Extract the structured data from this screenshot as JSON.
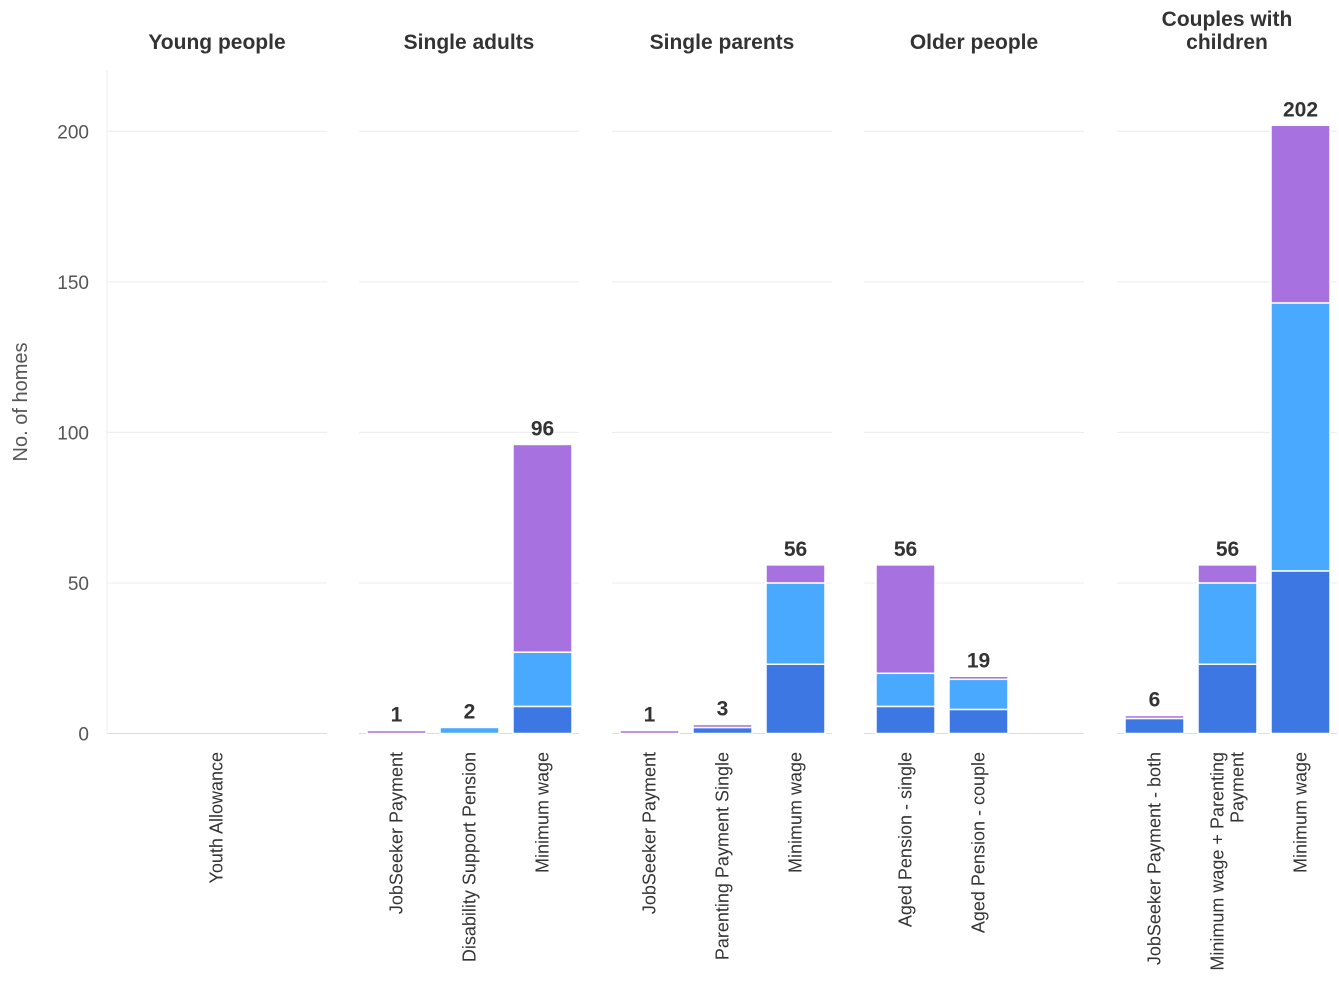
{
  "chart_data": {
    "type": "bar",
    "stacked": true,
    "ylabel": "No. of homes",
    "ylim": [
      0,
      215
    ],
    "yticks": [
      0,
      50,
      100,
      150,
      200
    ],
    "grid": true,
    "segment_colors": [
      "#3d77e3",
      "#48a9fe",
      "#a772e0"
    ],
    "panels": [
      {
        "title": [
          "Young people"
        ],
        "bars": [
          {
            "category": [
              "Youth Allowance"
            ],
            "total": null,
            "segments": [
              0,
              0,
              0
            ]
          }
        ]
      },
      {
        "title": [
          "Single adults"
        ],
        "bars": [
          {
            "category": [
              "JobSeeker Payment"
            ],
            "total": 1,
            "segments": [
              0,
              0,
              1
            ]
          },
          {
            "category": [
              "Disability Support Pension"
            ],
            "total": 2,
            "segments": [
              0,
              2,
              0
            ]
          },
          {
            "category": [
              "Minimum wage"
            ],
            "total": 96,
            "segments": [
              9,
              18,
              69
            ]
          }
        ]
      },
      {
        "title": [
          "Single parents"
        ],
        "bars": [
          {
            "category": [
              "JobSeeker Payment"
            ],
            "total": 1,
            "segments": [
              0,
              0,
              1
            ]
          },
          {
            "category": [
              "Parenting Payment Single"
            ],
            "total": 3,
            "segments": [
              2,
              0,
              1
            ]
          },
          {
            "category": [
              "Minimum wage"
            ],
            "total": 56,
            "segments": [
              23,
              27,
              6
            ]
          }
        ]
      },
      {
        "title": [
          "Older people"
        ],
        "bars": [
          {
            "category": [
              "Aged Pension - single"
            ],
            "total": 56,
            "segments": [
              9,
              11,
              36
            ]
          },
          {
            "category": [
              "Aged Pension - couple"
            ],
            "total": 19,
            "segments": [
              8,
              10,
              1
            ]
          }
        ]
      },
      {
        "title": [
          "Couples with",
          "children"
        ],
        "bars": [
          {
            "category": [
              "JobSeeker Payment - both"
            ],
            "total": 6,
            "segments": [
              5,
              0,
              1
            ]
          },
          {
            "category": [
              "Minimum wage + Parenting",
              "Payment"
            ],
            "total": 56,
            "segments": [
              23,
              27,
              6
            ]
          },
          {
            "category": [
              "Minimum wage"
            ],
            "total": 202,
            "segments": [
              54,
              89,
              59
            ]
          }
        ]
      }
    ]
  }
}
